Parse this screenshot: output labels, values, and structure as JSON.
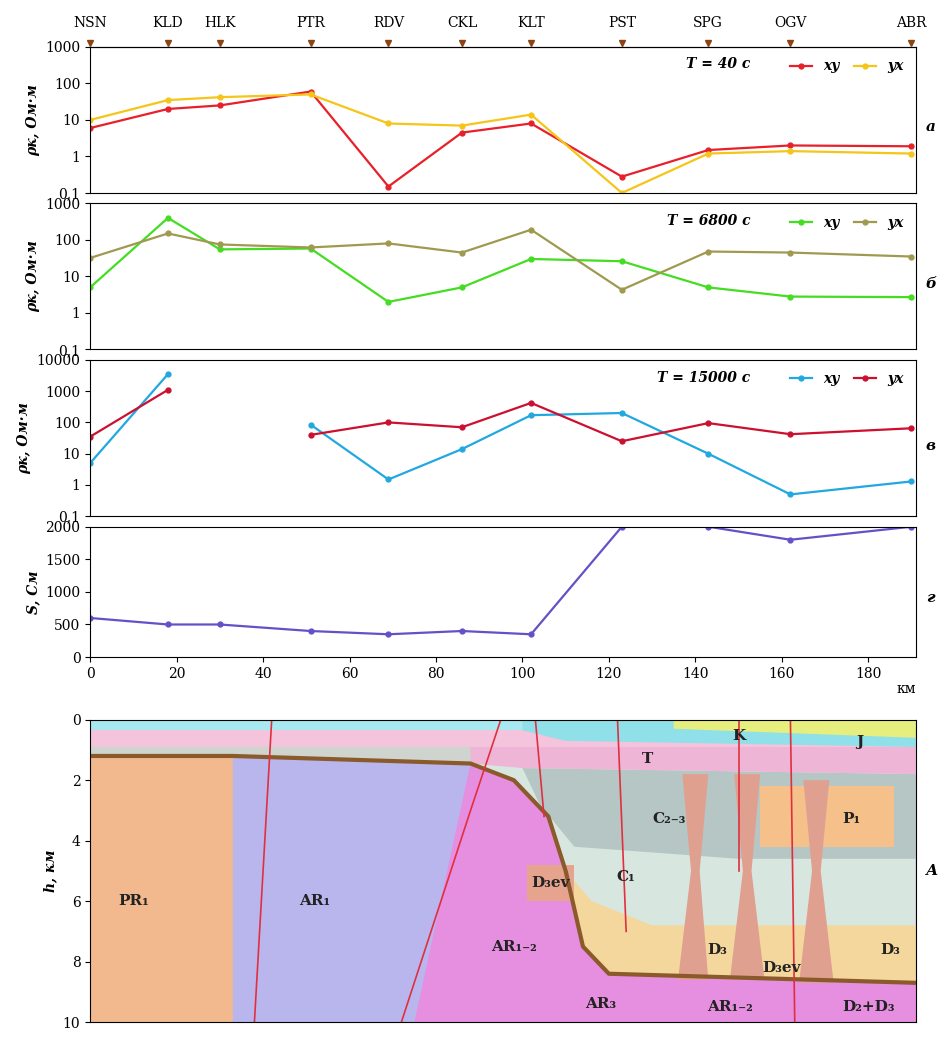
{
  "chart_data": [
    {
      "type": "line",
      "title": "T = 40 с",
      "annotation": "а",
      "ylabel": "ρк, Ом·м",
      "stations": [
        "NSN",
        "KLD",
        "HLK",
        "PTR",
        "RDV",
        "CKL",
        "KLT",
        "PST",
        "SPG",
        "OGV",
        "ABR"
      ],
      "x": [
        0,
        18,
        30,
        51,
        69,
        86,
        102,
        123,
        143,
        162,
        190
      ],
      "xlim": [
        0,
        191
      ],
      "ylim": [
        0.1,
        1000
      ],
      "yticks": [
        {
          "value": 0.1,
          "label": "0,1"
        },
        1,
        10,
        100,
        1000
      ],
      "log": "y",
      "legend": "upper right",
      "tick_labels": "y",
      "series": [
        {
          "name": "xy",
          "color": "#e8202a",
          "marker": "o",
          "values": [
            6,
            20,
            25,
            60,
            0.15,
            4.5,
            8,
            0.28,
            1.5,
            2,
            1.9
          ]
        },
        {
          "name": "yx",
          "color": "#f5c518",
          "marker": "o",
          "values": [
            10,
            35,
            42,
            50,
            8,
            7,
            14,
            0.1,
            1.2,
            1.4,
            1.2
          ]
        }
      ]
    },
    {
      "type": "line",
      "title": "T = 6800 с",
      "annotation": "б",
      "ylabel": "ρк, Ом·м",
      "x": [
        0,
        18,
        30,
        51,
        69,
        86,
        102,
        123,
        143,
        162,
        190
      ],
      "xlim": [
        0,
        191
      ],
      "ylim": [
        0.1,
        1000
      ],
      "yticks": [
        {
          "value": 0.1,
          "label": "0,1"
        },
        1,
        10,
        100,
        1000
      ],
      "log": "y",
      "legend": "upper right",
      "tick_labels": "y",
      "series": [
        {
          "name": "xy",
          "color": "#44dd22",
          "marker": "o",
          "values": [
            5,
            400,
            55,
            58,
            2,
            5,
            30,
            26,
            5,
            2.8,
            2.7
          ]
        },
        {
          "name": "yx",
          "color": "#a09a50",
          "marker": "o",
          "values": [
            32,
            150,
            75,
            62,
            80,
            45,
            190,
            4.3,
            48,
            45,
            35
          ]
        }
      ]
    },
    {
      "type": "line",
      "title": "T = 15000 с",
      "annotation": "в",
      "ylabel": "ρк, Ом·м",
      "x": [
        0,
        18,
        30,
        51,
        69,
        86,
        102,
        123,
        143,
        162,
        190
      ],
      "xlim": [
        0,
        191
      ],
      "ylim": [
        0.1,
        10000
      ],
      "yticks": [
        {
          "value": 0.1,
          "label": "0,1"
        },
        1,
        10,
        100,
        1000,
        10000
      ],
      "log": "y",
      "legend": "upper right",
      "tick_labels": "y",
      "series": [
        {
          "name": "xy",
          "color": "#22a8e0",
          "marker": "o",
          "values": [
            5,
            3500,
            null,
            85,
            1.5,
            14,
            170,
            200,
            10,
            0.5,
            1.3
          ]
        },
        {
          "name": "yx",
          "color": "#cc1030",
          "marker": "o",
          "values": [
            35,
            1100,
            null,
            40,
            100,
            70,
            420,
            25,
            95,
            42,
            65
          ]
        }
      ]
    },
    {
      "type": "line",
      "annotation": "г",
      "ylabel": "S, См",
      "xlabel": "км",
      "x": [
        0,
        18,
        30,
        51,
        69,
        86,
        102,
        123,
        143,
        162,
        190
      ],
      "xlim": [
        0,
        191
      ],
      "ylim": [
        0,
        2000
      ],
      "xticks": [
        0,
        20,
        40,
        60,
        80,
        100,
        120,
        140,
        160,
        180
      ],
      "yticks": [
        0,
        500,
        1000,
        1500,
        2000
      ],
      "series": [
        {
          "color": "#6650c8",
          "marker": "o",
          "values": [
            600,
            500,
            500,
            400,
            350,
            400,
            350,
            2000,
            2000,
            1800,
            2000
          ]
        }
      ]
    },
    {
      "type": "section",
      "annotation": "А",
      "ylabel": "h, км",
      "xlim": [
        0,
        191
      ],
      "ylim": [
        10,
        0
      ],
      "yticks": [
        0,
        2,
        4,
        6,
        8,
        10
      ],
      "tick_labels": "y",
      "layers": [
        {
          "color": "#e68ee0",
          "points": [
            [
              0,
              0
            ],
            [
              191,
              0
            ],
            [
              191,
              10
            ],
            [
              0,
              10
            ]
          ]
        },
        {
          "color": "#f2b98f",
          "points": [
            [
              0,
              1.2
            ],
            [
              33,
              1.2
            ],
            [
              33,
              10
            ],
            [
              0,
              10
            ]
          ]
        },
        {
          "color": "#b9b6ee",
          "points": [
            [
              33,
              1.2
            ],
            [
              88,
              1.45
            ],
            [
              75,
              10
            ],
            [
              33,
              10
            ]
          ]
        },
        {
          "color": "#d8e6e0",
          "points": [
            [
              88,
              1.45
            ],
            [
              98,
              2.0
            ],
            [
              106,
              3.2
            ],
            [
              110,
              5.0
            ],
            [
              114,
              7.5
            ],
            [
              120,
              8.4
            ],
            [
              191,
              8.7
            ],
            [
              191,
              0
            ],
            [
              88,
              0
            ]
          ]
        },
        {
          "color": "#f4d79c",
          "points": [
            [
              110,
              5.0
            ],
            [
              114,
              7.5
            ],
            [
              120,
              8.4
            ],
            [
              191,
              8.7
            ],
            [
              191,
              6.8
            ],
            [
              130,
              6.8
            ],
            [
              116,
              6.0
            ]
          ]
        },
        {
          "color": "#b5c6c4",
          "points": [
            [
              100,
              1.6
            ],
            [
              191,
              1.8
            ],
            [
              191,
              4.6
            ],
            [
              150,
              4.6
            ],
            [
              112,
              4.2
            ],
            [
              104,
              2.8
            ]
          ]
        },
        {
          "color": "#e6a48e",
          "points": [
            [
              101,
              4.8
            ],
            [
              112,
              4.8
            ],
            [
              112,
              6.0
            ],
            [
              101,
              6.0
            ]
          ]
        },
        {
          "color": "#f5c08a",
          "points": [
            [
              155,
              2.2
            ],
            [
              186,
              2.2
            ],
            [
              186,
              4.2
            ],
            [
              155,
              4.2
            ]
          ]
        },
        {
          "color": "#e0a090",
          "points": [
            [
              137,
              1.8
            ],
            [
              143,
              1.8
            ],
            [
              141,
              5
            ],
            [
              143,
              8.6
            ],
            [
              136,
              8.6
            ],
            [
              139,
              5
            ]
          ]
        },
        {
          "color": "#e0a090",
          "points": [
            [
              149,
              1.8
            ],
            [
              155,
              1.8
            ],
            [
              153,
              5
            ],
            [
              156,
              8.6
            ],
            [
              148,
              8.6
            ],
            [
              151,
              5
            ]
          ]
        },
        {
          "color": "#e0a090",
          "points": [
            [
              165,
              2.0
            ],
            [
              171,
              2.0
            ],
            [
              169,
              5
            ],
            [
              172,
              8.7
            ],
            [
              164,
              8.7
            ],
            [
              167,
              5
            ]
          ]
        },
        {
          "color": "#efb5d6",
          "points": [
            [
              88,
              0.9
            ],
            [
              191,
              0.9
            ],
            [
              191,
              1.8
            ],
            [
              100,
              1.6
            ],
            [
              88,
              1.45
            ]
          ]
        },
        {
          "color": "#f3c4dc",
          "points": [
            [
              0,
              0.35
            ],
            [
              191,
              0.35
            ],
            [
              191,
              0.9
            ],
            [
              0,
              0.9
            ]
          ]
        },
        {
          "color": "#cfd4cf",
          "points": [
            [
              0,
              0.9
            ],
            [
              88,
              0.9
            ],
            [
              88,
              1.45
            ],
            [
              33,
              1.2
            ],
            [
              0,
              1.2
            ]
          ]
        },
        {
          "color": "#a8e8f0",
          "points": [
            [
              0,
              0
            ],
            [
              191,
              0
            ],
            [
              191,
              0.35
            ],
            [
              0,
              0.35
            ]
          ]
        },
        {
          "color": "#8fe0e8",
          "points": [
            [
              100,
              0
            ],
            [
              191,
              0
            ],
            [
              191,
              0.9
            ],
            [
              110,
              0.7
            ],
            [
              100,
              0.35
            ]
          ]
        },
        {
          "color": "#e6ef7e",
          "points": [
            [
              135,
              0
            ],
            [
              191,
              0
            ],
            [
              191,
              0.6
            ],
            [
              135,
              0.3
            ]
          ]
        }
      ],
      "lines": [
        {
          "color": "#8b5a2b",
          "points": [
            [
              0,
              1.2
            ],
            [
              33,
              1.2
            ],
            [
              88,
              1.45
            ],
            [
              98,
              2.0
            ],
            [
              106,
              3.2
            ],
            [
              110,
              5.0
            ],
            [
              114,
              7.5
            ],
            [
              120,
              8.4
            ],
            [
              191,
              8.7
            ]
          ]
        }
      ],
      "faults": [
        [
          [
            42,
            0
          ],
          [
            38,
            10
          ]
        ],
        [
          [
            95,
            0
          ],
          [
            88,
            3
          ],
          [
            72,
            10
          ]
        ],
        [
          [
            103,
            0
          ],
          [
            105,
            3.2
          ]
        ],
        [
          [
            122,
            0
          ],
          [
            124,
            7
          ]
        ],
        [
          [
            150,
            0
          ],
          [
            150,
            5
          ]
        ],
        [
          [
            162,
            0
          ],
          [
            163,
            10
          ]
        ]
      ],
      "units": [
        {
          "text": "PR₁",
          "x": 10,
          "y": 6
        },
        {
          "text": "AR₁",
          "x": 52,
          "y": 6
        },
        {
          "text": "AR₁₋₂",
          "x": 98,
          "y": 7.5
        },
        {
          "text": "D₃ev",
          "x": 106.5,
          "y": 5.4
        },
        {
          "text": "C₁",
          "x": 124,
          "y": 5.2
        },
        {
          "text": "C₂₋₃",
          "x": 134,
          "y": 3.3
        },
        {
          "text": "T",
          "x": 129,
          "y": 1.3
        },
        {
          "text": "K",
          "x": 150,
          "y": 0.55
        },
        {
          "text": "J",
          "x": 178,
          "y": 0.75
        },
        {
          "text": "P₁",
          "x": 176,
          "y": 3.3
        },
        {
          "text": "D₃",
          "x": 145,
          "y": 7.6
        },
        {
          "text": "D₃ev",
          "x": 160,
          "y": 8.2
        },
        {
          "text": "D₃",
          "x": 185,
          "y": 7.6
        },
        {
          "text": "AR₃",
          "x": 118,
          "y": 9.4
        },
        {
          "text": "AR₁₋₂",
          "x": 148,
          "y": 9.5
        },
        {
          "text": "D₂+D₃",
          "x": 180,
          "y": 9.5
        }
      ]
    }
  ]
}
